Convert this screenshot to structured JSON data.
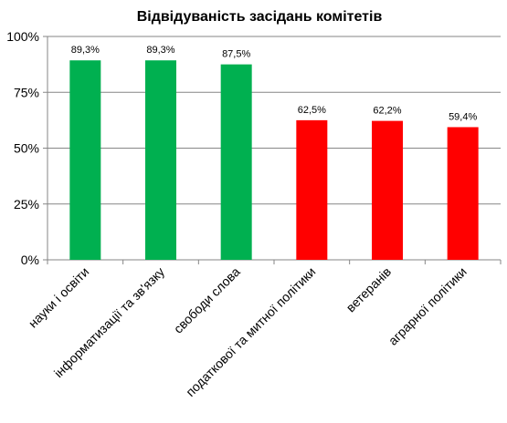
{
  "chart_data": {
    "type": "bar",
    "title": "Відвідуваність засідань комітетів",
    "categories": [
      "науки і освіти",
      "інформатизації та зв'язку",
      "свободи слова",
      "податкової та митної політики",
      "ветеранів",
      "аграрної політики"
    ],
    "values": [
      89.3,
      89.3,
      87.5,
      62.5,
      62.2,
      59.4
    ],
    "data_labels": [
      "89,3%",
      "89,3%",
      "87,5%",
      "62,5%",
      "62,2%",
      "59,4%"
    ],
    "bar_colors": [
      "#00b050",
      "#00b050",
      "#00b050",
      "#ff0000",
      "#ff0000",
      "#ff0000"
    ],
    "ylim": [
      0,
      100
    ],
    "yticks": [
      0,
      25,
      50,
      75,
      100
    ],
    "ytick_labels": [
      "0%",
      "25%",
      "50%",
      "75%",
      "100%"
    ],
    "grid": true,
    "legend": "none",
    "xlabel": "",
    "ylabel": ""
  },
  "colors": {
    "gridline": "#868686",
    "axis": "#868686"
  }
}
